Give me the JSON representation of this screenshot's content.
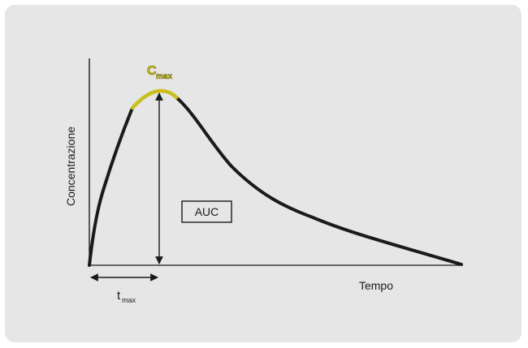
{
  "labels": {
    "y_axis": "Concentrazione",
    "x_axis": "Tempo",
    "auc": "AUC",
    "cmax_main": "C",
    "cmax_sub": "max",
    "tmax_main": "t",
    "tmax_sub": "max"
  },
  "colors": {
    "panel_background": "#e6e6e6",
    "curve": "#1a1a1a",
    "peak_highlight": "#c9c01a"
  }
}
